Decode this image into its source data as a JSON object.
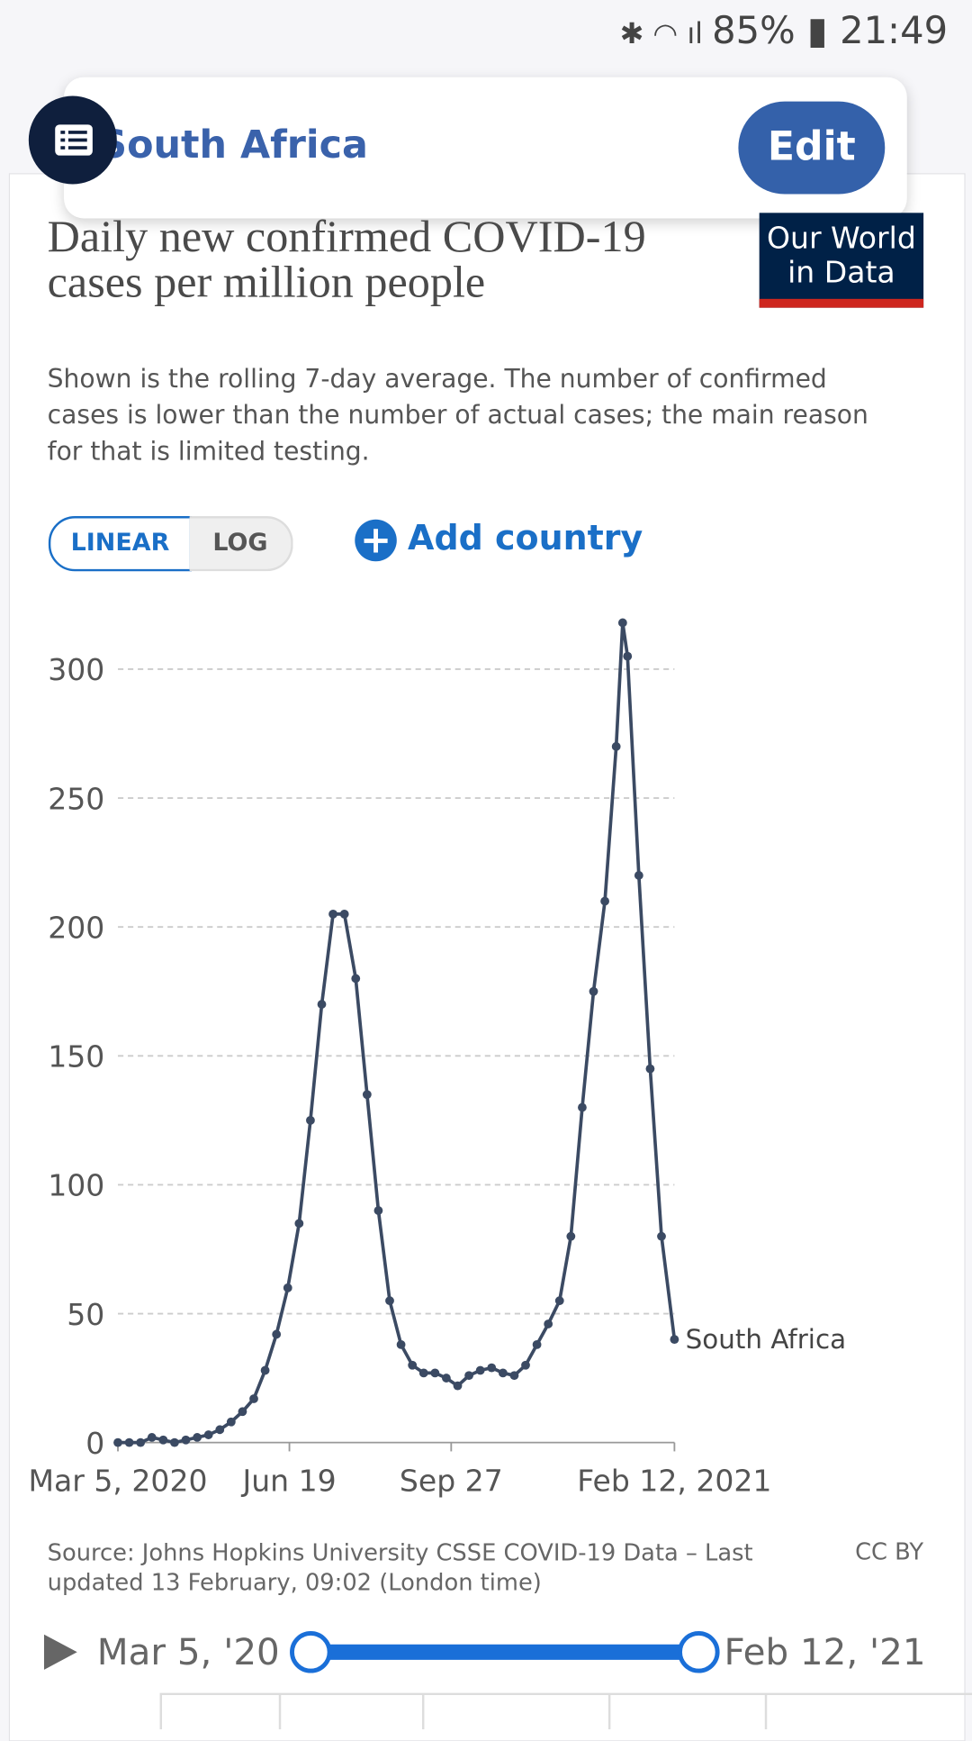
{
  "status_bar": {
    "battery": "85%",
    "time": "21:49"
  },
  "header": {
    "country": "South Africa",
    "edit": "Edit"
  },
  "logo": [
    "Our World",
    "in Data"
  ],
  "controls": {
    "scales": [
      "LINEAR",
      "LOG"
    ],
    "add_country": "Add country"
  },
  "chart_data": {
    "type": "line",
    "title": "Daily new confirmed COVID-19 cases per million people",
    "subtitle": "Shown is the rolling 7-day average. The number of confirmed cases is lower than the number of actual cases; the main reason for that is limited testing.",
    "x": [
      "2020-03-05",
      "2020-03-12",
      "2020-03-19",
      "2020-03-26",
      "2020-04-02",
      "2020-04-09",
      "2020-04-16",
      "2020-04-23",
      "2020-04-30",
      "2020-05-07",
      "2020-05-14",
      "2020-05-21",
      "2020-05-28",
      "2020-06-04",
      "2020-06-11",
      "2020-06-18",
      "2020-06-25",
      "2020-07-02",
      "2020-07-09",
      "2020-07-16",
      "2020-07-23",
      "2020-07-30",
      "2020-08-06",
      "2020-08-13",
      "2020-08-20",
      "2020-08-27",
      "2020-09-03",
      "2020-09-10",
      "2020-09-17",
      "2020-09-24",
      "2020-10-01",
      "2020-10-08",
      "2020-10-15",
      "2020-10-22",
      "2020-10-29",
      "2020-11-05",
      "2020-11-12",
      "2020-11-19",
      "2020-11-26",
      "2020-12-03",
      "2020-12-10",
      "2020-12-17",
      "2020-12-24",
      "2020-12-31",
      "2021-01-07",
      "2021-01-11",
      "2021-01-14",
      "2021-01-21",
      "2021-01-28",
      "2021-02-04",
      "2021-02-12"
    ],
    "series": [
      {
        "name": "South Africa",
        "color": "#3b4a63",
        "values": [
          0,
          0,
          0,
          2,
          1,
          0,
          1,
          2,
          3,
          5,
          8,
          12,
          17,
          28,
          42,
          60,
          85,
          125,
          170,
          205,
          205,
          180,
          135,
          90,
          55,
          38,
          30,
          27,
          27,
          25,
          22,
          26,
          28,
          29,
          27,
          26,
          30,
          38,
          46,
          55,
          80,
          130,
          175,
          210,
          270,
          318,
          305,
          220,
          145,
          80,
          40
        ]
      }
    ],
    "xlim": [
      "2020-03-05",
      "2021-02-12"
    ],
    "xticks": [
      {
        "value": "2020-03-05",
        "label": "Mar 5, 2020"
      },
      {
        "value": "2020-06-19",
        "label": "Jun 19"
      },
      {
        "value": "2020-09-27",
        "label": "Sep 27"
      },
      {
        "value": "2021-02-12",
        "label": "Feb 12, 2021"
      }
    ],
    "ylim": [
      0,
      320
    ],
    "yticks": [
      0,
      50,
      100,
      150,
      200,
      250,
      300
    ],
    "grid": true
  },
  "footer": {
    "source": "Source: Johns Hopkins University CSSE COVID-19 Data – Last updated 13 February, 09:02 (London time)",
    "license": "CC BY"
  },
  "timeline": {
    "start": "Mar 5, '20",
    "end": "Feb 12, '21"
  }
}
